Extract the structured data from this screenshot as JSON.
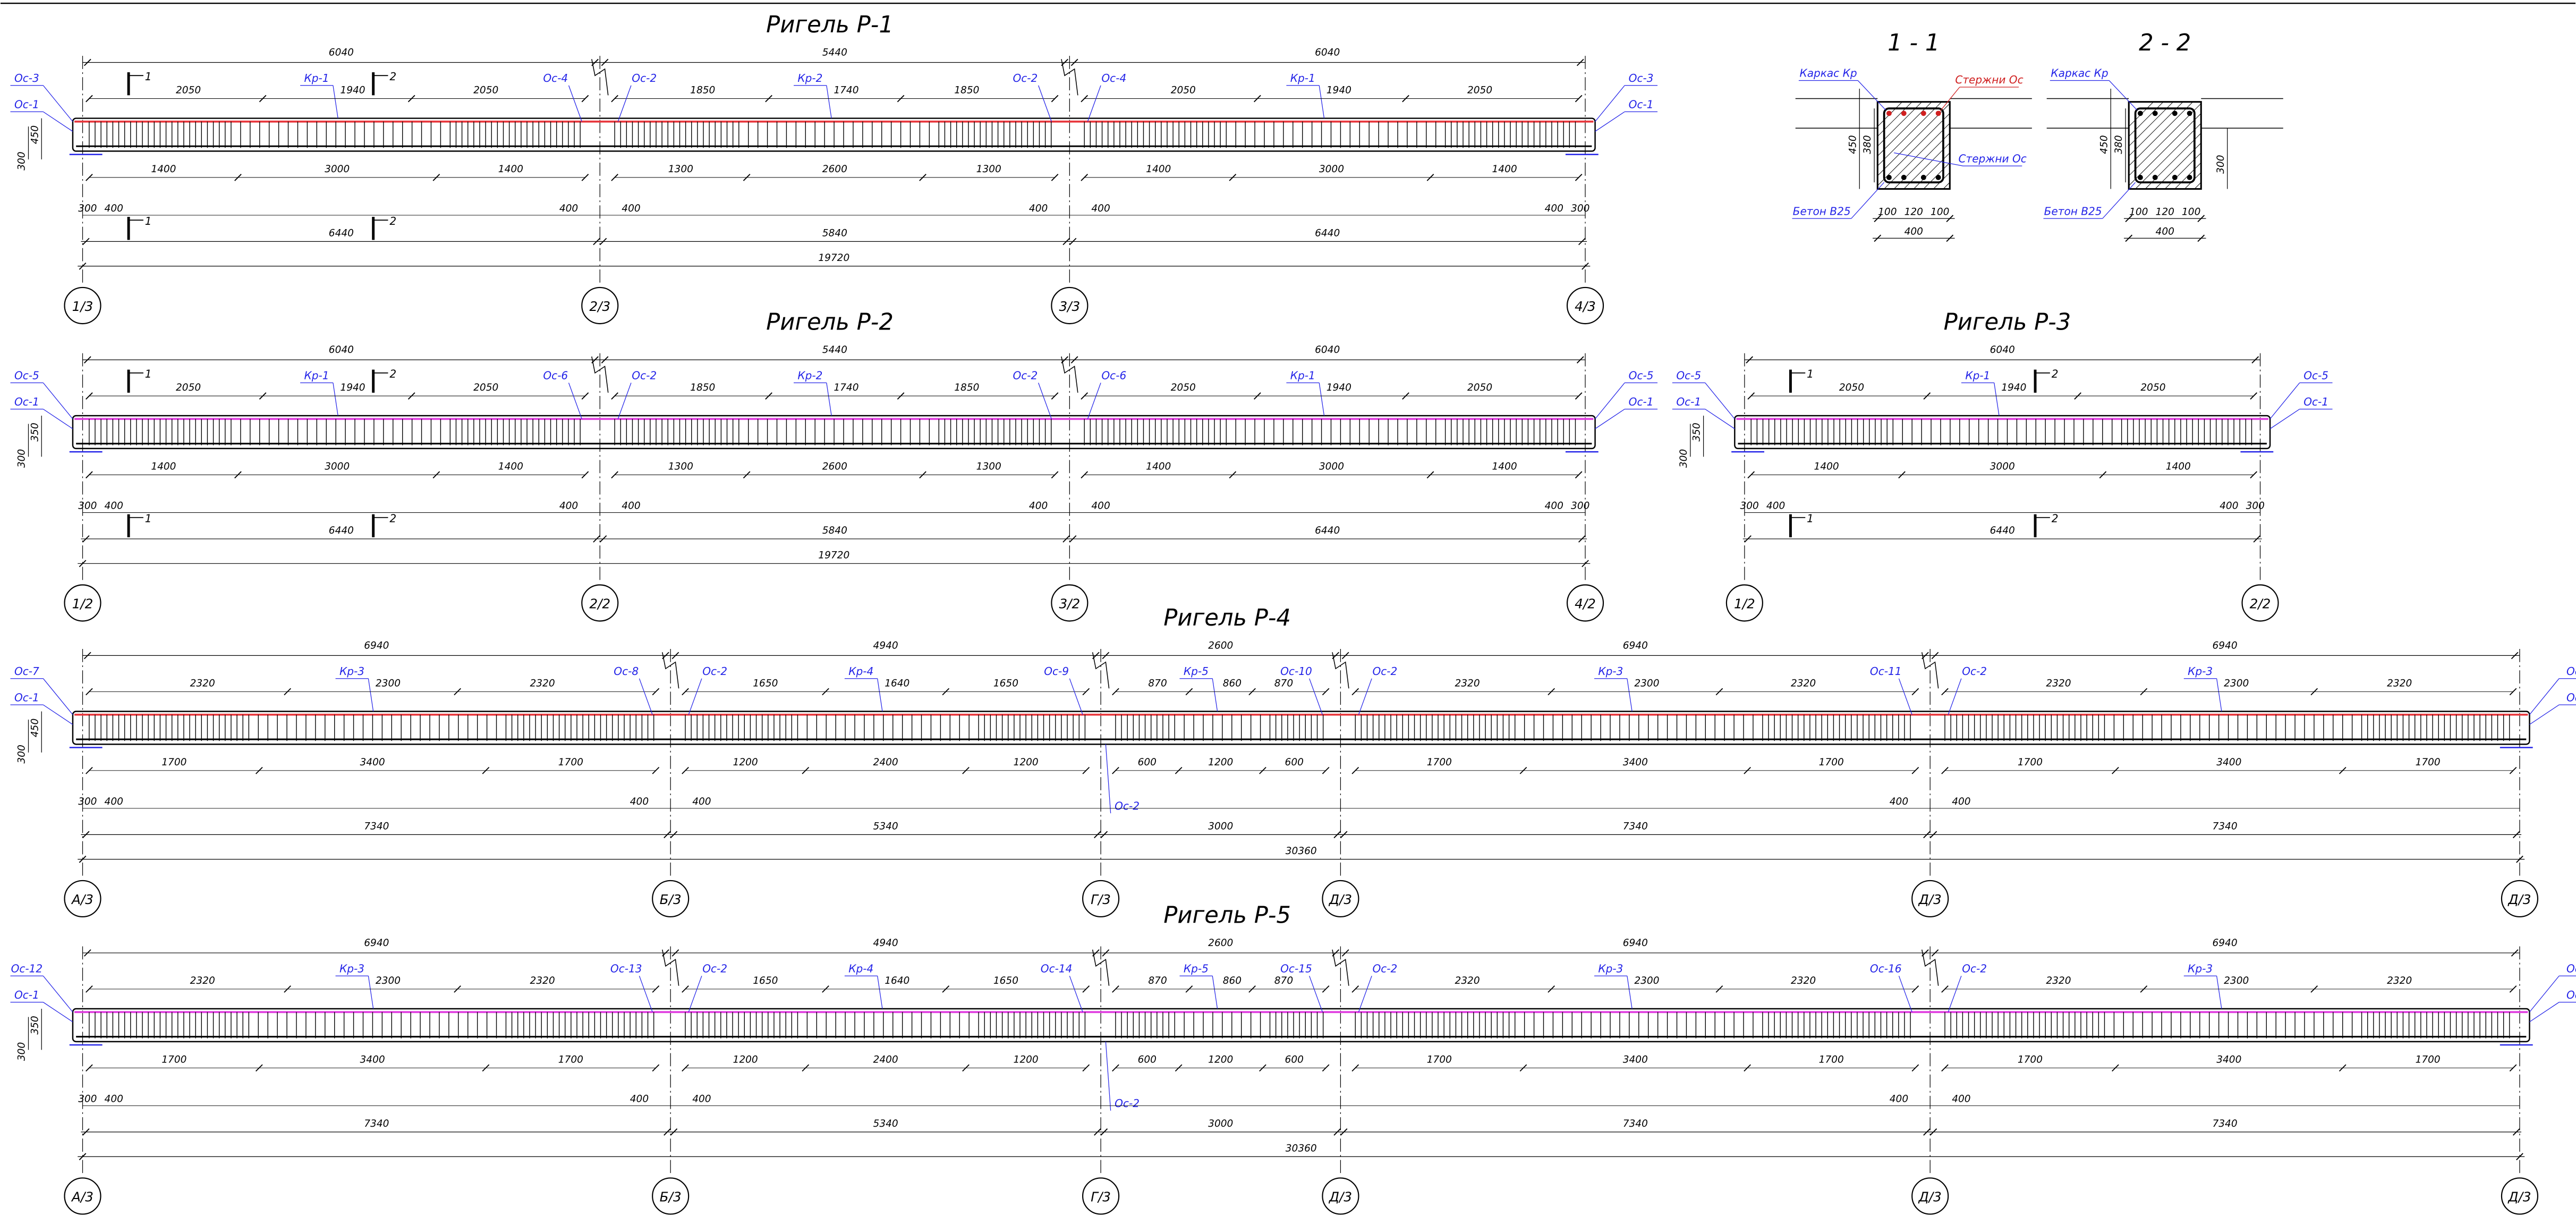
{
  "beams": [
    {
      "title": "Ригель Р-1",
      "bar_color": "#e8383d",
      "left_tags": [
        "Ос-3",
        "Ос-1"
      ],
      "right_tags": [
        "Ос-3",
        "Ос-1"
      ],
      "heights": [
        "300",
        "450"
      ],
      "ends": [
        "300",
        "300"
      ],
      "cuts": [
        "1",
        "2"
      ],
      "total": "19720",
      "axes": [
        "1/3",
        "2/3",
        "3/3",
        "4/3"
      ],
      "spans": [
        {
          "top": "6040",
          "frame": "Кр-1",
          "frame_len": "1940",
          "side_lens": [
            "2050",
            "2050"
          ],
          "bottom": [
            "1400",
            "3000",
            "1400"
          ],
          "support_left": "400",
          "support_right": "400",
          "total": "6440",
          "right_tag": "Ос-4"
        },
        {
          "top": "5440",
          "frame": "Кр-2",
          "frame_len": "1740",
          "side_lens": [
            "1850",
            "1850"
          ],
          "bottom": [
            "1300",
            "2600",
            "1300"
          ],
          "support_left": "400",
          "support_right": "400",
          "total": "5840",
          "left_tag": "Ос-2",
          "right_tag": "Ос-2"
        },
        {
          "top": "6040",
          "frame": "Кр-1",
          "frame_len": "1940",
          "side_lens": [
            "2050",
            "2050"
          ],
          "bottom": [
            "1400",
            "3000",
            "1400"
          ],
          "support_left": "400",
          "support_right": "400",
          "total": "6440",
          "left_tag": "Ос-4"
        }
      ]
    },
    {
      "title": "Ригель Р-2",
      "bar_color": "#e040e0",
      "left_tags": [
        "Ос-5",
        "Ос-1"
      ],
      "right_tags": [
        "Ос-5",
        "Ос-1"
      ],
      "heights": [
        "300",
        "350"
      ],
      "ends": [
        "300",
        "300"
      ],
      "cuts": [
        "1",
        "2"
      ],
      "total": "19720",
      "axes": [
        "1/2",
        "2/2",
        "3/2",
        "4/2"
      ],
      "spans": [
        {
          "top": "6040",
          "frame": "Кр-1",
          "frame_len": "1940",
          "side_lens": [
            "2050",
            "2050"
          ],
          "bottom": [
            "1400",
            "3000",
            "1400"
          ],
          "support_left": "400",
          "support_right": "400",
          "total": "6440",
          "right_tag": "Ос-6"
        },
        {
          "top": "5440",
          "frame": "Кр-2",
          "frame_len": "1740",
          "side_lens": [
            "1850",
            "1850"
          ],
          "bottom": [
            "1300",
            "2600",
            "1300"
          ],
          "support_left": "400",
          "support_right": "400",
          "total": "5840",
          "left_tag": "Ос-2",
          "right_tag": "Ос-2"
        },
        {
          "top": "6040",
          "frame": "Кр-1",
          "frame_len": "1940",
          "side_lens": [
            "2050",
            "2050"
          ],
          "bottom": [
            "1400",
            "3000",
            "1400"
          ],
          "support_left": "400",
          "support_right": "400",
          "total": "6440",
          "left_tag": "Ос-6"
        }
      ]
    },
    {
      "title": "Ригель Р-3",
      "bar_color": "#e040e0",
      "left_tags": [
        "Ос-5",
        "Ос-1"
      ],
      "right_tags": [
        "Ос-5",
        "Ос-1"
      ],
      "heights": [
        "300",
        "350"
      ],
      "ends": [
        "300",
        "300"
      ],
      "cuts": [
        "1",
        "2"
      ],
      "axes": [
        "1/2",
        "2/2"
      ],
      "spans": [
        {
          "top": "6040",
          "frame": "Кр-1",
          "frame_len": "1940",
          "side_lens": [
            "2050",
            "2050"
          ],
          "bottom": [
            "1400",
            "3000",
            "1400"
          ],
          "support_left": "400",
          "support_right": "400",
          "total": "6440"
        }
      ]
    },
    {
      "title": "Ригель Р-4",
      "bar_color": "#e8383d",
      "left_tags": [
        "Ос-7",
        "Ос-1"
      ],
      "right_tags": [
        "Ос-",
        "Ос-"
      ],
      "heights": [
        "300",
        "450"
      ],
      "ends": [
        "300"
      ],
      "total": "30360",
      "axes": [
        "А/3",
        "Б/3",
        "Г/3",
        "Д/3",
        "Д/3",
        "Д/3"
      ],
      "spans": [
        {
          "top": "6940",
          "frame": "Кр-3",
          "frame_len": "2300",
          "side_lens": [
            "2320",
            "2320"
          ],
          "bottom": [
            "1700",
            "3400",
            "1700"
          ],
          "support_left": "400",
          "support_right": "400",
          "total": "7340",
          "right_tag": "Ос-8"
        },
        {
          "top": "4940",
          "frame": "Кр-4",
          "frame_len": "1640",
          "side_lens": [
            "1650",
            "1650"
          ],
          "bottom": [
            "1200",
            "2400",
            "1200"
          ],
          "support_left": "400",
          "total": "5340",
          "left_tag": "Ос-2",
          "right_tag": "Ос-9"
        },
        {
          "top": "2600",
          "frame": "Кр-5",
          "frame_len": "860",
          "side_lens": [
            "870",
            "870"
          ],
          "bottom": [
            "600",
            "1200",
            "600"
          ],
          "total": "3000",
          "right_tag": "Ос-10",
          "bottom_tag": "Ос-2"
        },
        {
          "top": "6940",
          "frame": "Кр-3",
          "frame_len": "2300",
          "side_lens": [
            "2320",
            "2320"
          ],
          "bottom": [
            "1700",
            "3400",
            "1700"
          ],
          "support_right": "400",
          "total": "7340",
          "left_tag": "Ос-2",
          "right_tag": "Ос-11"
        },
        {
          "top": "6940",
          "frame": "Кр-3",
          "frame_len": "2300",
          "side_lens": [
            "2320",
            "2320"
          ],
          "bottom": [
            "1700",
            "3400",
            "1700"
          ],
          "support_left": "400",
          "total": "7340",
          "left_tag": "Ос-2"
        }
      ]
    },
    {
      "title": "Ригель Р-5",
      "bar_color": "#e040e0",
      "left_tags": [
        "Ос-12",
        "Ос-1"
      ],
      "right_tags": [
        "Ос-",
        "Ос-"
      ],
      "heights": [
        "300",
        "350"
      ],
      "ends": [
        "300"
      ],
      "total": "30360",
      "axes": [
        "А/3",
        "Б/3",
        "Г/3",
        "Д/3",
        "Д/3",
        "Д/3"
      ],
      "spans": [
        {
          "top": "6940",
          "frame": "Кр-3",
          "frame_len": "2300",
          "side_lens": [
            "2320",
            "2320"
          ],
          "bottom": [
            "1700",
            "3400",
            "1700"
          ],
          "support_left": "400",
          "support_right": "400",
          "total": "7340",
          "right_tag": "Ос-13"
        },
        {
          "top": "4940",
          "frame": "Кр-4",
          "frame_len": "1640",
          "side_lens": [
            "1650",
            "1650"
          ],
          "bottom": [
            "1200",
            "2400",
            "1200"
          ],
          "support_left": "400",
          "total": "5340",
          "left_tag": "Ос-2",
          "right_tag": "Ос-14"
        },
        {
          "top": "2600",
          "frame": "Кр-5",
          "frame_len": "860",
          "side_lens": [
            "870",
            "870"
          ],
          "bottom": [
            "600",
            "1200",
            "600"
          ],
          "total": "3000",
          "right_tag": "Ос-15",
          "bottom_tag": "Ос-2"
        },
        {
          "top": "6940",
          "frame": "Кр-3",
          "frame_len": "2300",
          "side_lens": [
            "2320",
            "2320"
          ],
          "bottom": [
            "1700",
            "3400",
            "1700"
          ],
          "support_right": "400",
          "total": "7340",
          "left_tag": "Ос-2",
          "right_tag": "Ос-16"
        },
        {
          "top": "6940",
          "frame": "Кр-3",
          "frame_len": "2300",
          "side_lens": [
            "2320",
            "2320"
          ],
          "bottom": [
            "1700",
            "3400",
            "1700"
          ],
          "support_left": "400",
          "total": "7340",
          "left_tag": "Ос-2"
        }
      ]
    }
  ],
  "sections": [
    {
      "title": "1 - 1",
      "frame": "Каркас Кр",
      "bars_top": "Стержни Ос",
      "bars_bottom": "Стержни Ос",
      "concrete": "Бетон В25",
      "height": "450",
      "inner": "380",
      "bottom": [
        "100",
        "120",
        "100"
      ],
      "width": "400"
    },
    {
      "title": "2 - 2",
      "frame": "Каркас Кр",
      "concrete": "Бетон В25",
      "height": "450",
      "inner": "380",
      "slab": "300",
      "bottom": [
        "100",
        "120",
        "100"
      ],
      "width": "400"
    }
  ]
}
